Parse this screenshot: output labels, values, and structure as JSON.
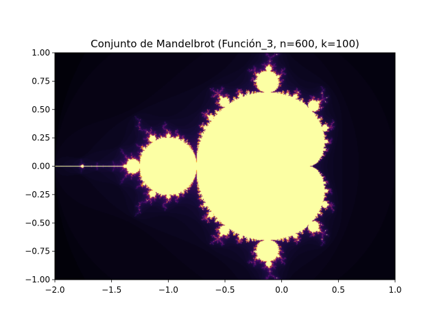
{
  "chart_data": {
    "type": "heatmap",
    "title": "Conjunto de Mandelbrot (Función_3, n=600, k=100)",
    "xlabel": "",
    "ylabel": "",
    "xlim": [
      -2.0,
      1.0
    ],
    "ylim": [
      -1.0,
      1.0
    ],
    "xticks": [
      "-2.0",
      "-1.5",
      "-1.0",
      "-0.5",
      "0.0",
      "0.5",
      "1.0"
    ],
    "yticks": [
      "1.00",
      "0.75",
      "0.50",
      "0.25",
      "0.00",
      "-0.25",
      "-0.50",
      "-0.75",
      "-1.00"
    ],
    "grid": false,
    "resolution": 600,
    "max_iterations": 100,
    "colormap": "inferno",
    "colors": {
      "inside": "#fcffa4",
      "outside": "#000004"
    }
  }
}
